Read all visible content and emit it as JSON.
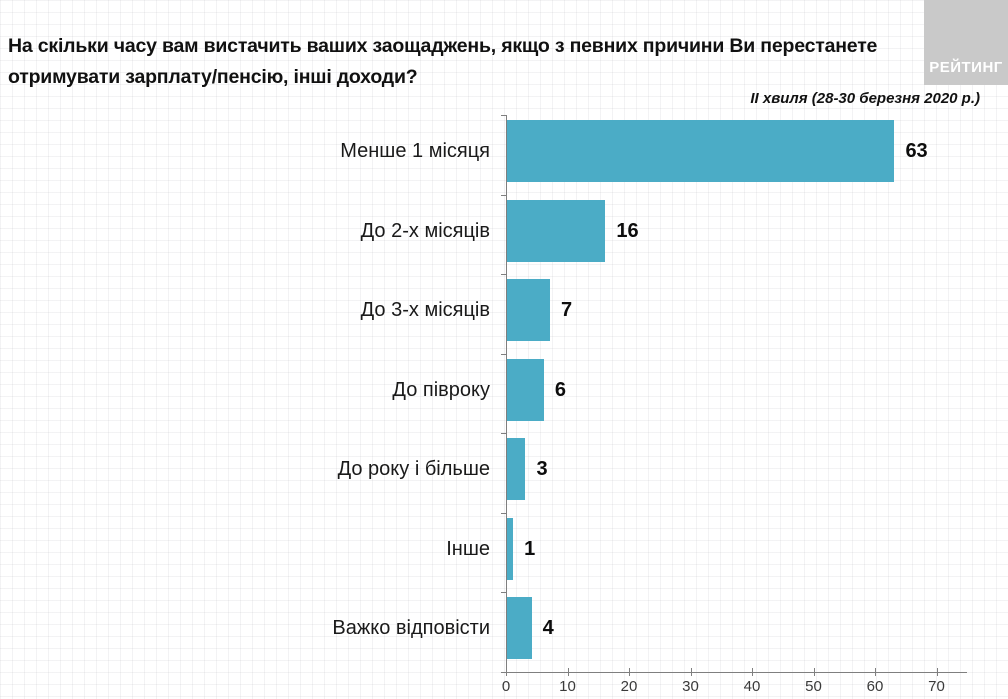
{
  "header": {
    "logo_text": "РЕЙТИНГ"
  },
  "chart_data": {
    "type": "bar",
    "orientation": "horizontal",
    "title": "На скільки часу вам вистачить ваших заощаджень, якщо з певних причини Ви перестанете отримувати зарплату/пенсію, інші доходи?",
    "title_lines": [
      "На скільки часу вам вистачить ваших заощаджень, якщо з певних причини Ви перестанете",
      "отримувати зарплату/пенсію, інші доходи?"
    ],
    "subtitle": "ІІ хвиля (28-30 березня 2020 р.)",
    "categories": [
      "Менше 1 місяця",
      "До 2-х місяців",
      "До 3-х місяців",
      "До півроку",
      "До року і більше",
      "Інше",
      "Важко відповісти"
    ],
    "values": [
      63,
      16,
      7,
      6,
      3,
      1,
      4
    ],
    "xlim": [
      0,
      75
    ],
    "x_ticks": [
      0,
      10,
      20,
      30,
      40,
      50,
      60,
      70
    ],
    "bar_color": "#4bacc6",
    "grid": false,
    "legend": "none",
    "value_labels": "outside-end"
  },
  "colors": {
    "bar": "#4bacc6",
    "axis": "#7f7f7f",
    "text": "#1a1a1a",
    "logo_bg": "#c9c9c9",
    "logo_text": "#ffffff"
  }
}
